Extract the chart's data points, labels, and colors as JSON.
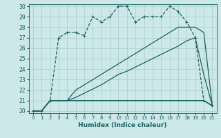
{
  "title": "",
  "xlabel": "Humidex (Indice chaleur)",
  "ylabel": "",
  "background_color": "#cce8e8",
  "grid_color": "#aacccc",
  "line_color": "#1a6060",
  "xlim": [
    -0.5,
    21.5
  ],
  "ylim": [
    19.8,
    30.2
  ],
  "xticks": [
    0,
    1,
    2,
    3,
    4,
    5,
    6,
    7,
    8,
    9,
    10,
    11,
    12,
    13,
    14,
    15,
    16,
    17,
    18,
    19,
    20,
    21
  ],
  "yticks": [
    20,
    21,
    22,
    23,
    24,
    25,
    26,
    27,
    28,
    29,
    30
  ],
  "series": [
    {
      "x": [
        0,
        1,
        2,
        3,
        4,
        5,
        6,
        7,
        8,
        9,
        10,
        11,
        12,
        13,
        14,
        15,
        16,
        17,
        18,
        19,
        20,
        21
      ],
      "y": [
        20,
        20,
        21,
        27,
        27.5,
        27.5,
        27.2,
        29.0,
        28.5,
        29.0,
        30.0,
        30.0,
        28.5,
        29.0,
        29.0,
        29.0,
        30.0,
        29.5,
        28.5,
        27.0,
        21.0,
        20.5
      ],
      "marker": "+",
      "markersize": 3,
      "linewidth": 0.9,
      "linestyle": "--"
    },
    {
      "x": [
        0,
        1,
        2,
        3,
        4,
        5,
        6,
        7,
        8,
        9,
        10,
        11,
        12,
        13,
        14,
        15,
        16,
        17,
        18,
        19,
        20,
        21
      ],
      "y": [
        20,
        20,
        21,
        21,
        21,
        22,
        22.5,
        23.0,
        23.5,
        24.0,
        24.5,
        25.0,
        25.5,
        26.0,
        26.5,
        27.0,
        27.5,
        28.0,
        28.0,
        28.0,
        27.5,
        20.5
      ],
      "marker": null,
      "markersize": 0,
      "linewidth": 0.9,
      "linestyle": "-"
    },
    {
      "x": [
        0,
        1,
        2,
        3,
        4,
        5,
        6,
        7,
        8,
        9,
        10,
        11,
        12,
        13,
        14,
        15,
        16,
        17,
        18,
        19,
        20,
        21
      ],
      "y": [
        20,
        20,
        21,
        21,
        21,
        21.3,
        21.7,
        22.1,
        22.5,
        23.0,
        23.5,
        23.8,
        24.2,
        24.6,
        25.0,
        25.4,
        25.8,
        26.2,
        26.7,
        27.0,
        23.5,
        20.5
      ],
      "marker": null,
      "markersize": 0,
      "linewidth": 0.9,
      "linestyle": "-"
    },
    {
      "x": [
        0,
        1,
        2,
        3,
        4,
        5,
        6,
        7,
        8,
        9,
        10,
        11,
        12,
        13,
        14,
        15,
        16,
        17,
        18,
        19,
        20,
        21
      ],
      "y": [
        20,
        20,
        21,
        21,
        21,
        21,
        21,
        21,
        21,
        21,
        21,
        21,
        21,
        21,
        21,
        21,
        21,
        21,
        21,
        21,
        21,
        20.5
      ],
      "marker": null,
      "markersize": 0,
      "linewidth": 1.1,
      "linestyle": "-"
    }
  ]
}
